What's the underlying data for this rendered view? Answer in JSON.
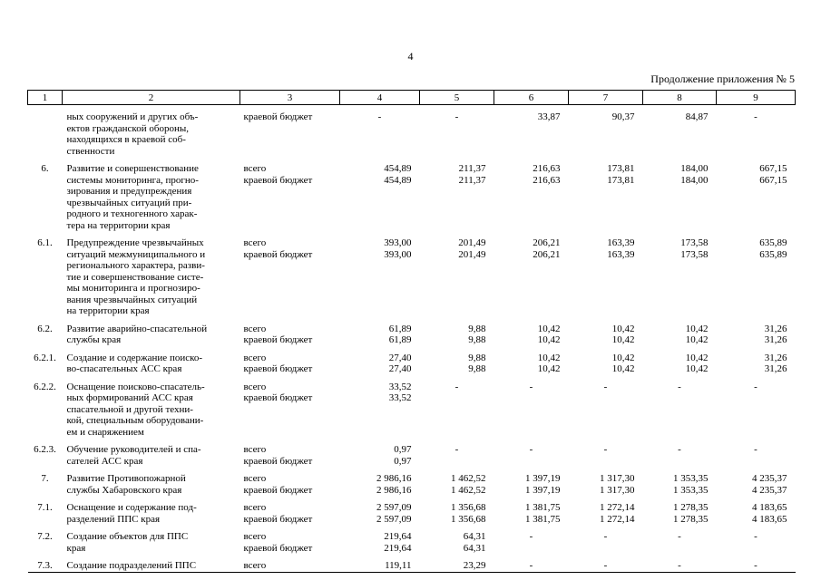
{
  "page": {
    "number": "4",
    "continuation": "Продолжение приложения № 5"
  },
  "table": {
    "column_numbers": [
      "1",
      "2",
      "3",
      "4",
      "5",
      "6",
      "7",
      "8",
      "9"
    ],
    "rows": [
      {
        "num": "",
        "name": "ных сооружений и других объ-\nектов гражданской обороны,\nнаходящихся в краевой соб-\nственности",
        "lines": [
          {
            "source": "краевой бюджет",
            "values": [
              "-",
              "-",
              "33,87",
              "90,37",
              "84,87",
              "-"
            ]
          }
        ]
      },
      {
        "num": "6.",
        "name": "Развитие и совершенствование\nсистемы мониторинга, прогно-\nзирования и предупреждения\nчрезвычайных ситуаций при-\nродного и техногенного харак-\nтера на территории края",
        "lines": [
          {
            "source": "всего",
            "values": [
              "454,89",
              "211,37",
              "216,63",
              "173,81",
              "184,00",
              "667,15"
            ]
          },
          {
            "source": "краевой бюджет",
            "values": [
              "454,89",
              "211,37",
              "216,63",
              "173,81",
              "184,00",
              "667,15"
            ]
          }
        ]
      },
      {
        "num": "6.1.",
        "name": "Предупреждение чрезвычайных\nситуаций межмуниципального и\nрегионального характера, разви-\nтие и совершенствование систе-\nмы мониторинга и прогнозиро-\nвания чрезвычайных ситуаций\nна территории края",
        "lines": [
          {
            "source": "всего",
            "values": [
              "393,00",
              "201,49",
              "206,21",
              "163,39",
              "173,58",
              "635,89"
            ]
          },
          {
            "source": "краевой бюджет",
            "values": [
              "393,00",
              "201,49",
              "206,21",
              "163,39",
              "173,58",
              "635,89"
            ]
          }
        ]
      },
      {
        "num": "6.2.",
        "name": "Развитие аварийно-спасательной\nслужбы края",
        "lines": [
          {
            "source": "всего",
            "values": [
              "61,89",
              "9,88",
              "10,42",
              "10,42",
              "10,42",
              "31,26"
            ]
          },
          {
            "source": "краевой бюджет",
            "values": [
              "61,89",
              "9,88",
              "10,42",
              "10,42",
              "10,42",
              "31,26"
            ]
          }
        ]
      },
      {
        "num": "6.2.1.",
        "name": "Создание и содержание поиско-\nво-спасательных АСС края",
        "lines": [
          {
            "source": "всего",
            "values": [
              "27,40",
              "9,88",
              "10,42",
              "10,42",
              "10,42",
              "31,26"
            ]
          },
          {
            "source": "краевой бюджет",
            "values": [
              "27,40",
              "9,88",
              "10,42",
              "10,42",
              "10,42",
              "31,26"
            ]
          }
        ]
      },
      {
        "num": "6.2.2.",
        "name": "Оснащение поисково-спасатель-\nных формирований АСС края\nспасательной и другой техни-\nкой, специальным оборудовани-\nем и снаряжением",
        "lines": [
          {
            "source": "всего",
            "values": [
              "33,52",
              "-",
              "-",
              "-",
              "-",
              "-"
            ]
          },
          {
            "source": "краевой бюджет",
            "values": [
              "33,52",
              "",
              "",
              "",
              "",
              ""
            ]
          }
        ]
      },
      {
        "num": "6.2.3.",
        "name": "Обучение руководителей и спа-\nсателей АСС края",
        "lines": [
          {
            "source": "всего",
            "values": [
              "0,97",
              "-",
              "-",
              "-",
              "-",
              "-"
            ]
          },
          {
            "source": "краевой бюджет",
            "values": [
              "0,97",
              "",
              "",
              "",
              "",
              ""
            ]
          }
        ]
      },
      {
        "num": "7.",
        "name": "Развитие Противопожарной\nслужбы Хабаровского края",
        "lines": [
          {
            "source": "всего",
            "values": [
              "2 986,16",
              "1 462,52",
              "1 397,19",
              "1 317,30",
              "1 353,35",
              "4 235,37"
            ]
          },
          {
            "source": "краевой бюджет",
            "values": [
              "2 986,16",
              "1 462,52",
              "1 397,19",
              "1 317,30",
              "1 353,35",
              "4 235,37"
            ]
          }
        ]
      },
      {
        "num": "7.1.",
        "name": "Оснащение и содержание под-\nразделений ППС края",
        "lines": [
          {
            "source": "всего",
            "values": [
              "2 597,09",
              "1 356,68",
              "1 381,75",
              "1 272,14",
              "1 278,35",
              "4 183,65"
            ]
          },
          {
            "source": "краевой бюджет",
            "values": [
              "2 597,09",
              "1 356,68",
              "1 381,75",
              "1 272,14",
              "1 278,35",
              "4 183,65"
            ]
          }
        ]
      },
      {
        "num": "7.2.",
        "name": "Создание объектов для ППС\nкрая",
        "lines": [
          {
            "source": "всего",
            "values": [
              "219,64",
              "64,31",
              "-",
              "-",
              "-",
              "-"
            ]
          },
          {
            "source": "краевой бюджет",
            "values": [
              "219,64",
              "64,31",
              "",
              "",
              "",
              ""
            ]
          }
        ]
      },
      {
        "num": "7.3.",
        "name": "Создание подразделений ППС",
        "lines": [
          {
            "source": "всего",
            "values": [
              "119,11",
              "23,29",
              "-",
              "-",
              "-",
              "-"
            ]
          }
        ]
      }
    ]
  }
}
